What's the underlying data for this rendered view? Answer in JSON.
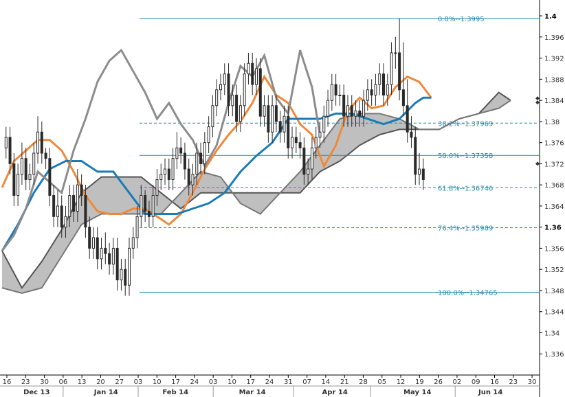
{
  "chart_data": {
    "type": "line",
    "title": "",
    "instrument_description": "Ichimoku cloud with Fibonacci retracement levels on daily candles",
    "y_axis": {
      "position": "right",
      "range": [
        1.332,
        1.403
      ],
      "ticks": [
        {
          "value": 1.4,
          "label": "1.4",
          "major": true
        },
        {
          "value": 1.396,
          "label": "1.396"
        },
        {
          "value": 1.392,
          "label": "1.392"
        },
        {
          "value": 1.388,
          "label": "1.388"
        },
        {
          "value": 1.384,
          "label": "1.384"
        },
        {
          "value": 1.38,
          "label": "1.38"
        },
        {
          "value": 1.376,
          "label": "1.376"
        },
        {
          "value": 1.372,
          "label": "1.372"
        },
        {
          "value": 1.368,
          "label": "1.368"
        },
        {
          "value": 1.364,
          "label": "1.364"
        },
        {
          "value": 1.36,
          "label": "1.36",
          "major": true
        },
        {
          "value": 1.356,
          "label": "1.356"
        },
        {
          "value": 1.352,
          "label": "1.352"
        },
        {
          "value": 1.348,
          "label": "1.348"
        },
        {
          "value": 1.344,
          "label": "1.344"
        },
        {
          "value": 1.34,
          "label": "1.34"
        },
        {
          "value": 1.336,
          "label": "1.336"
        }
      ]
    },
    "x_axis": {
      "day_ticks": [
        "16",
        "23",
        "30",
        "06",
        "13",
        "20",
        "27",
        "03",
        "10",
        "17",
        "24",
        "03",
        "10",
        "17",
        "24",
        "31",
        "07",
        "14",
        "21",
        "28",
        "05",
        "12",
        "19",
        "26",
        "02",
        "09",
        "16",
        "23",
        "30"
      ],
      "month_labels": [
        "Dec 13",
        "Jan 14",
        "Feb 14",
        "Mar 14",
        "Apr 14",
        "May 14",
        "Jun 14"
      ]
    },
    "fibonacci_levels": [
      {
        "label": "0.0%",
        "value": 1.3995,
        "text": "0.0%--1.3995",
        "style": "solid"
      },
      {
        "label": "38.2%",
        "value": 1.37969,
        "text": "38.2%--1.37969",
        "style": "dashed"
      },
      {
        "label": "50.0%",
        "value": 1.37358,
        "text": "50.0%--1.37358",
        "style": "solid"
      },
      {
        "label": "61.8%",
        "value": 1.36746,
        "text": "61.8%--1.36746",
        "style": "dashed"
      },
      {
        "label": "76.4%",
        "value": 1.35989,
        "text": "76.4%--1.35989",
        "style": "dashed"
      },
      {
        "label": "100.0%",
        "value": 1.34765,
        "text": "100.0%--1.34765",
        "style": "solid"
      }
    ],
    "series": [
      {
        "role": "tenkan",
        "color": "#f0883a",
        "x": [
          0,
          3,
          6,
          9,
          12,
          15,
          18,
          21,
          24,
          27,
          30,
          33,
          36,
          39,
          42,
          45,
          48,
          51,
          54,
          57,
          60,
          63,
          66,
          69,
          72,
          75,
          78,
          81,
          84,
          87,
          90,
          93,
          96,
          99,
          102,
          105,
          108
        ],
        "values": [
          1.3675,
          1.3725,
          1.3745,
          1.3765,
          1.3765,
          1.3745,
          1.3705,
          1.366,
          1.363,
          1.3625,
          1.3625,
          1.3635,
          1.3635,
          1.362,
          1.3605,
          1.3625,
          1.3665,
          1.371,
          1.3745,
          1.3775,
          1.38,
          1.3835,
          1.3885,
          1.385,
          1.3835,
          1.3795,
          1.3775,
          1.3715,
          1.3755,
          1.382,
          1.3845,
          1.3825,
          1.383,
          1.3865,
          1.3885,
          1.3875,
          1.3845
        ]
      },
      {
        "role": "kijun",
        "color": "#1a7bb5",
        "x": [
          0,
          4,
          8,
          12,
          16,
          20,
          24,
          28,
          32,
          36,
          40,
          44,
          48,
          52,
          56,
          60,
          64,
          68,
          72,
          76,
          80,
          84,
          88,
          92,
          96,
          100,
          104,
          106,
          108
        ],
        "values": [
          1.3555,
          1.3605,
          1.3665,
          1.371,
          1.3725,
          1.3725,
          1.3705,
          1.3705,
          1.3665,
          1.3625,
          1.3625,
          1.3625,
          1.3635,
          1.3645,
          1.3665,
          1.3705,
          1.3735,
          1.376,
          1.3805,
          1.3805,
          1.3805,
          1.3815,
          1.3815,
          1.3805,
          1.3795,
          1.3805,
          1.3835,
          1.3845,
          1.3845
        ]
      },
      {
        "role": "chikou",
        "color": "#8c8c8c",
        "x": [
          0,
          3,
          6,
          9,
          12,
          15,
          18,
          21,
          24,
          27,
          30,
          33,
          36,
          39,
          42,
          45,
          48,
          51,
          54,
          57,
          60,
          63,
          66,
          69,
          72,
          75,
          78,
          80
        ],
        "values": [
          1.3555,
          1.3585,
          1.3635,
          1.3705,
          1.3685,
          1.3665,
          1.3745,
          1.3805,
          1.3875,
          1.3915,
          1.3935,
          1.3895,
          1.3855,
          1.3805,
          1.3835,
          1.3795,
          1.3765,
          1.3715,
          1.3755,
          1.3835,
          1.3905,
          1.3885,
          1.3925,
          1.3845,
          1.3815,
          1.3935,
          1.3865,
          1.3775
        ]
      }
    ],
    "cloud": {
      "color": "#bfbfbf",
      "x": [
        0,
        5,
        10,
        15,
        20,
        25,
        30,
        35,
        40,
        45,
        50,
        55,
        60,
        65,
        70,
        75,
        80,
        85,
        90,
        95,
        100,
        105,
        110,
        115,
        120,
        125,
        128
      ],
      "span_a": [
        1.3555,
        1.3485,
        1.3535,
        1.3595,
        1.3665,
        1.3695,
        1.3695,
        1.3695,
        1.3665,
        1.3635,
        1.3665,
        1.3665,
        1.3665,
        1.3665,
        1.3665,
        1.3665,
        1.3705,
        1.3725,
        1.3755,
        1.3775,
        1.3785,
        1.3785,
        1.3785,
        1.3805,
        1.3815,
        1.3855,
        1.384
      ],
      "span_b": [
        1.3485,
        1.3475,
        1.3485,
        1.3545,
        1.3605,
        1.3625,
        1.3625,
        1.3625,
        1.3625,
        1.3665,
        1.3705,
        1.3695,
        1.3645,
        1.3625,
        1.3665,
        1.3705,
        1.3755,
        1.3805,
        1.3815,
        1.3815,
        1.3805,
        1.3785,
        1.3785,
        1.3805,
        1.3815,
        1.3825,
        1.384
      ]
    },
    "candles": {
      "color": "#2a2a2a",
      "x": [
        1,
        2,
        3,
        4,
        5,
        6,
        7,
        8,
        9,
        10,
        11,
        12,
        13,
        14,
        15,
        16,
        17,
        18,
        19,
        20,
        21,
        22,
        23,
        24,
        25,
        26,
        27,
        28,
        29,
        30,
        31,
        32,
        33,
        34,
        35,
        36,
        37,
        38,
        39,
        40,
        41,
        42,
        43,
        44,
        45,
        46,
        47,
        48,
        49,
        50,
        51,
        52,
        53,
        54,
        55,
        56,
        57,
        58,
        59,
        60,
        61,
        62,
        63,
        64,
        65,
        66,
        67,
        68,
        69,
        70,
        71,
        72,
        73,
        74,
        75,
        76,
        77,
        78,
        79,
        80,
        81,
        82,
        83,
        84,
        85,
        86,
        87,
        88,
        89,
        90,
        91,
        92,
        93,
        94,
        95,
        96,
        97,
        98,
        99,
        100,
        101,
        102,
        103,
        104,
        105,
        106
      ],
      "open": [
        1.375,
        1.377,
        1.372,
        1.366,
        1.37,
        1.373,
        1.369,
        1.37,
        1.374,
        1.378,
        1.374,
        1.373,
        1.366,
        1.362,
        1.364,
        1.36,
        1.362,
        1.366,
        1.363,
        1.368,
        1.366,
        1.36,
        1.356,
        1.358,
        1.354,
        1.356,
        1.355,
        1.353,
        1.356,
        1.35,
        1.352,
        1.349,
        1.356,
        1.358,
        1.362,
        1.366,
        1.363,
        1.362,
        1.366,
        1.369,
        1.37,
        1.371,
        1.369,
        1.373,
        1.375,
        1.374,
        1.371,
        1.368,
        1.37,
        1.374,
        1.372,
        1.376,
        1.379,
        1.383,
        1.386,
        1.387,
        1.389,
        1.383,
        1.385,
        1.38,
        1.383,
        1.389,
        1.391,
        1.387,
        1.39,
        1.381,
        1.383,
        1.378,
        1.383,
        1.38,
        1.378,
        1.381,
        1.375,
        1.377,
        1.376,
        1.375,
        1.37,
        1.371,
        1.375,
        1.377,
        1.378,
        1.381,
        1.384,
        1.387,
        1.385,
        1.385,
        1.381,
        1.383,
        1.381,
        1.382,
        1.381,
        1.384,
        1.386,
        1.385,
        1.387,
        1.389,
        1.385,
        1.387,
        1.393,
        1.393,
        1.386,
        1.383,
        1.378,
        1.377,
        1.37,
        1.371
      ],
      "close": [
        1.377,
        1.372,
        1.366,
        1.37,
        1.373,
        1.369,
        1.37,
        1.374,
        1.378,
        1.374,
        1.373,
        1.366,
        1.362,
        1.364,
        1.36,
        1.362,
        1.366,
        1.363,
        1.368,
        1.366,
        1.36,
        1.356,
        1.358,
        1.354,
        1.356,
        1.355,
        1.353,
        1.356,
        1.35,
        1.352,
        1.349,
        1.356,
        1.358,
        1.362,
        1.366,
        1.363,
        1.362,
        1.366,
        1.369,
        1.37,
        1.371,
        1.369,
        1.373,
        1.375,
        1.374,
        1.371,
        1.368,
        1.37,
        1.374,
        1.372,
        1.376,
        1.379,
        1.383,
        1.386,
        1.387,
        1.389,
        1.383,
        1.385,
        1.38,
        1.383,
        1.389,
        1.391,
        1.387,
        1.39,
        1.381,
        1.383,
        1.378,
        1.383,
        1.38,
        1.378,
        1.381,
        1.375,
        1.377,
        1.376,
        1.375,
        1.37,
        1.371,
        1.375,
        1.377,
        1.378,
        1.381,
        1.384,
        1.387,
        1.385,
        1.385,
        1.381,
        1.383,
        1.381,
        1.382,
        1.381,
        1.384,
        1.386,
        1.385,
        1.387,
        1.389,
        1.385,
        1.387,
        1.393,
        1.393,
        1.386,
        1.383,
        1.378,
        1.377,
        1.37,
        1.371,
        1.369
      ],
      "high": [
        1.379,
        1.379,
        1.374,
        1.372,
        1.376,
        1.375,
        1.372,
        1.376,
        1.381,
        1.38,
        1.375,
        1.375,
        1.368,
        1.367,
        1.366,
        1.364,
        1.368,
        1.368,
        1.371,
        1.37,
        1.368,
        1.362,
        1.36,
        1.36,
        1.358,
        1.359,
        1.357,
        1.358,
        1.358,
        1.354,
        1.354,
        1.358,
        1.36,
        1.364,
        1.368,
        1.367,
        1.365,
        1.368,
        1.371,
        1.372,
        1.373,
        1.373,
        1.375,
        1.378,
        1.377,
        1.376,
        1.373,
        1.372,
        1.376,
        1.376,
        1.378,
        1.381,
        1.385,
        1.388,
        1.389,
        1.391,
        1.391,
        1.387,
        1.387,
        1.385,
        1.391,
        1.393,
        1.393,
        1.392,
        1.392,
        1.385,
        1.385,
        1.385,
        1.385,
        1.382,
        1.383,
        1.383,
        1.379,
        1.379,
        1.378,
        1.377,
        1.373,
        1.377,
        1.379,
        1.38,
        1.383,
        1.386,
        1.389,
        1.389,
        1.387,
        1.387,
        1.385,
        1.385,
        1.384,
        1.384,
        1.386,
        1.388,
        1.388,
        1.389,
        1.391,
        1.391,
        1.389,
        1.395,
        1.396,
        1.3995,
        1.395,
        1.388,
        1.381,
        1.379,
        1.374,
        1.373
      ],
      "low": [
        1.373,
        1.37,
        1.364,
        1.364,
        1.368,
        1.367,
        1.367,
        1.368,
        1.372,
        1.372,
        1.371,
        1.364,
        1.36,
        1.36,
        1.358,
        1.358,
        1.36,
        1.361,
        1.361,
        1.364,
        1.358,
        1.354,
        1.354,
        1.352,
        1.352,
        1.353,
        1.351,
        1.351,
        1.348,
        1.348,
        1.347,
        1.347,
        1.354,
        1.356,
        1.36,
        1.361,
        1.36,
        1.36,
        1.364,
        1.367,
        1.368,
        1.367,
        1.367,
        1.371,
        1.372,
        1.369,
        1.366,
        1.366,
        1.368,
        1.37,
        1.37,
        1.374,
        1.377,
        1.381,
        1.384,
        1.385,
        1.381,
        1.381,
        1.378,
        1.378,
        1.381,
        1.387,
        1.385,
        1.385,
        1.379,
        1.379,
        1.376,
        1.376,
        1.378,
        1.376,
        1.376,
        1.373,
        1.373,
        1.374,
        1.373,
        1.368,
        1.368,
        1.369,
        1.373,
        1.375,
        1.376,
        1.379,
        1.382,
        1.383,
        1.383,
        1.379,
        1.379,
        1.379,
        1.379,
        1.379,
        1.379,
        1.382,
        1.383,
        1.383,
        1.385,
        1.383,
        1.383,
        1.385,
        1.39,
        1.384,
        1.381,
        1.376,
        1.375,
        1.368,
        1.368,
        1.367
      ]
    },
    "markers": [
      {
        "value": 1.384,
        "symbol": "double-diamond"
      },
      {
        "value": 1.372,
        "symbol": "diamond"
      }
    ]
  }
}
